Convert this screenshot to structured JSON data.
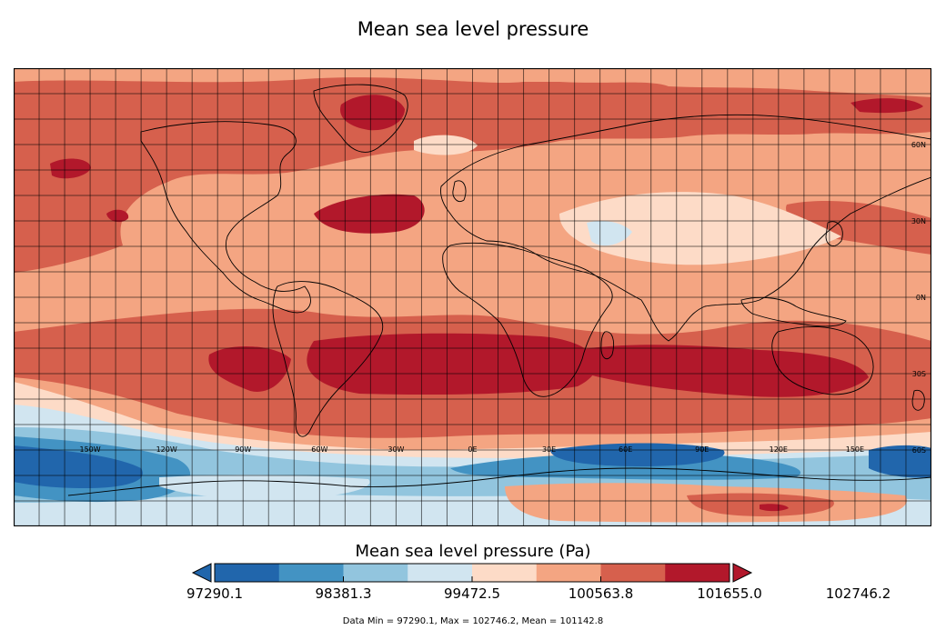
{
  "title": "Mean sea level pressure",
  "colorbar": {
    "label": "Mean sea level pressure (Pa)",
    "colors": [
      "#2166ac",
      "#4393c3",
      "#92c5de",
      "#d1e5f0",
      "#fddbc7",
      "#f4a582",
      "#d6604d",
      "#b2182b"
    ],
    "under_color": "#2166ac",
    "over_color": "#b2182b",
    "ticks": [
      "97290.1",
      "98381.3",
      "99472.5",
      "100563.8",
      "101655.0",
      "102746.2"
    ]
  },
  "stats_text": "Data Min = 97290.1, Max = 102746.2, Mean = 101142.8",
  "map": {
    "projection": "PlateCarree",
    "lon_labels": [
      "150W",
      "120W",
      "90W",
      "60W",
      "30W",
      "0E",
      "30E",
      "60E",
      "90E",
      "120E",
      "150E"
    ],
    "lat_labels": [
      "60N",
      "30N",
      "0N",
      "30S",
      "60S"
    ],
    "gridline_color": "#000000"
  }
}
